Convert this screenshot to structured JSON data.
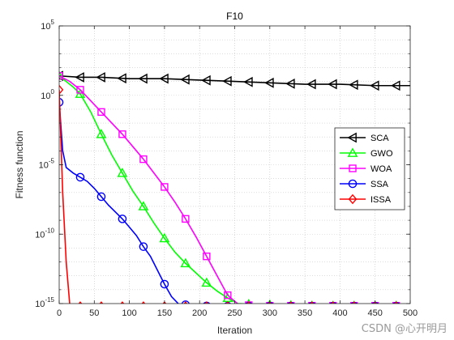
{
  "chart_data": {
    "type": "line",
    "title": "F10",
    "xlabel": "Iteration",
    "ylabel": "Fitness function",
    "xlim": [
      0,
      500
    ],
    "ylim_log10": [
      -15,
      5
    ],
    "yscale": "log",
    "grid": true,
    "legend_position": "right",
    "x_ticks": [
      0,
      50,
      100,
      150,
      200,
      250,
      300,
      350,
      400,
      450,
      500
    ],
    "y_ticks": [
      {
        "exp": 5,
        "base": "10",
        "sup": "5"
      },
      {
        "exp": 0,
        "base": "10",
        "sup": "0"
      },
      {
        "exp": -5,
        "base": "10",
        "sup": "-5"
      },
      {
        "exp": -10,
        "base": "10",
        "sup": "-10"
      },
      {
        "exp": -15,
        "base": "10",
        "sup": "-15"
      }
    ],
    "series": [
      {
        "name": "SCA",
        "color": "#000000",
        "marker": "triangle-left",
        "log10_points": [
          [
            0,
            1.4
          ],
          [
            30,
            1.3
          ],
          [
            60,
            1.3
          ],
          [
            100,
            1.2
          ],
          [
            150,
            1.2
          ],
          [
            200,
            1.1
          ],
          [
            250,
            1.0
          ],
          [
            300,
            0.9
          ],
          [
            350,
            0.8
          ],
          [
            400,
            0.8
          ],
          [
            450,
            0.7
          ],
          [
            500,
            0.7
          ]
        ],
        "marker_x": [
          0,
          30,
          60,
          90,
          120,
          150,
          180,
          210,
          240,
          270,
          300,
          330,
          360,
          390,
          420,
          450,
          480
        ]
      },
      {
        "name": "GWO",
        "color": "#00ff00",
        "marker": "triangle-up",
        "log10_points": [
          [
            0,
            1.4
          ],
          [
            10,
            1.0
          ],
          [
            20,
            0.6
          ],
          [
            30,
            0.1
          ],
          [
            45,
            -1.2
          ],
          [
            60,
            -2.8
          ],
          [
            75,
            -4.3
          ],
          [
            90,
            -5.6
          ],
          [
            105,
            -6.9
          ],
          [
            120,
            -8.0
          ],
          [
            135,
            -9.2
          ],
          [
            150,
            -10.3
          ],
          [
            165,
            -11.3
          ],
          [
            180,
            -12.1
          ],
          [
            195,
            -12.8
          ],
          [
            210,
            -13.5
          ],
          [
            225,
            -14.1
          ],
          [
            240,
            -14.6
          ],
          [
            255,
            -15.1
          ],
          [
            270,
            -15.6
          ],
          [
            285,
            -16.1
          ],
          [
            300,
            -16.4
          ],
          [
            315,
            -16.8
          ],
          [
            330,
            -17.1
          ],
          [
            345,
            -17.4
          ],
          [
            360,
            -17.6
          ],
          [
            375,
            -17.7
          ],
          [
            390,
            -17.7
          ],
          [
            420,
            -17.7
          ],
          [
            450,
            -17.7
          ],
          [
            500,
            -17.7
          ]
        ],
        "marker_x": [
          0,
          30,
          60,
          90,
          120,
          150,
          180,
          210,
          240,
          270,
          300,
          330,
          360,
          390,
          420,
          450,
          480
        ]
      },
      {
        "name": "WOA",
        "color": "#ff00ff",
        "marker": "square",
        "log10_points": [
          [
            0,
            1.4
          ],
          [
            15,
            1.0
          ],
          [
            30,
            0.4
          ],
          [
            45,
            -0.4
          ],
          [
            60,
            -1.2
          ],
          [
            75,
            -2.0
          ],
          [
            90,
            -2.8
          ],
          [
            105,
            -3.7
          ],
          [
            120,
            -4.6
          ],
          [
            135,
            -5.6
          ],
          [
            150,
            -6.6
          ],
          [
            165,
            -7.7
          ],
          [
            180,
            -8.9
          ],
          [
            195,
            -10.2
          ],
          [
            210,
            -11.6
          ],
          [
            225,
            -13.0
          ],
          [
            240,
            -14.4
          ],
          [
            255,
            -15.7
          ],
          [
            270,
            -16.9
          ],
          [
            285,
            -17.5
          ],
          [
            300,
            -17.6
          ],
          [
            400,
            -17.6
          ],
          [
            500,
            -17.6
          ]
        ],
        "marker_x": [
          0,
          30,
          60,
          90,
          120,
          150,
          180,
          210,
          240,
          270,
          300,
          330,
          360,
          390,
          420,
          450,
          480
        ]
      },
      {
        "name": "SSA",
        "color": "#0000ff",
        "marker": "circle",
        "log10_points": [
          [
            0,
            -0.5
          ],
          [
            5,
            -4.0
          ],
          [
            10,
            -5.2
          ],
          [
            20,
            -5.6
          ],
          [
            30,
            -5.9
          ],
          [
            40,
            -6.2
          ],
          [
            50,
            -6.7
          ],
          [
            60,
            -7.3
          ],
          [
            70,
            -7.9
          ],
          [
            80,
            -8.4
          ],
          [
            90,
            -8.9
          ],
          [
            100,
            -9.5
          ],
          [
            110,
            -10.1
          ],
          [
            120,
            -10.9
          ],
          [
            130,
            -11.6
          ],
          [
            140,
            -12.6
          ],
          [
            150,
            -13.6
          ],
          [
            160,
            -14.5
          ],
          [
            170,
            -15.4
          ],
          [
            180,
            -16.4
          ],
          [
            190,
            -17.1
          ],
          [
            200,
            -17.5
          ],
          [
            210,
            -17.8
          ],
          [
            220,
            -18.0
          ],
          [
            240,
            -18.1
          ],
          [
            300,
            -18.1
          ],
          [
            500,
            -18.1
          ]
        ],
        "marker_x": [
          0,
          30,
          60,
          90,
          120,
          150,
          180,
          210,
          240,
          270,
          300,
          330,
          360,
          390,
          420,
          450,
          480
        ]
      },
      {
        "name": "ISSA",
        "color": "#ff0000",
        "marker": "diamond",
        "log10_points": [
          [
            0,
            0.4
          ],
          [
            5,
            -7.0
          ],
          [
            10,
            -12.0
          ],
          [
            15,
            -15.5
          ],
          [
            20,
            -17.5
          ],
          [
            25,
            -18.2
          ],
          [
            30,
            -18.3
          ],
          [
            500,
            -18.3
          ]
        ],
        "marker_x": [
          0,
          30,
          60,
          90,
          120,
          150,
          180,
          210,
          240,
          270,
          300,
          330,
          360,
          390,
          420,
          450,
          480
        ]
      }
    ]
  },
  "watermark": "CSDN @心开明月"
}
